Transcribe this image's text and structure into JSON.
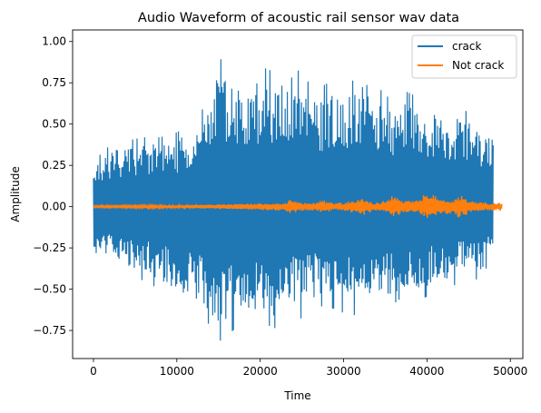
{
  "chart_data": {
    "type": "line",
    "title": "Audio Waveform of acoustic rail sensor wav data",
    "xlabel": "Time",
    "ylabel": "Amplitude",
    "xlim": [
      -2500,
      51500
    ],
    "ylim": [
      -0.92,
      1.07
    ],
    "xticks": [
      0,
      10000,
      20000,
      30000,
      40000,
      50000
    ],
    "xtick_labels": [
      "0",
      "10000",
      "20000",
      "30000",
      "40000",
      "50000"
    ],
    "yticks": [
      -0.75,
      -0.5,
      -0.25,
      0.0,
      0.25,
      0.5,
      0.75,
      1.0
    ],
    "ytick_labels": [
      "−0.75",
      "−0.50",
      "−0.25",
      "0.00",
      "0.25",
      "0.50",
      "0.75",
      "1.00"
    ],
    "grid": false,
    "legend_position": "top-right",
    "series": [
      {
        "name": "crack",
        "color": "#1f77b4",
        "x_range": [
          0,
          48000
        ],
        "envelope_x": [
          0,
          1000,
          2000,
          4000,
          6000,
          8000,
          10000,
          11000,
          12000,
          14000,
          15000,
          16000,
          18000,
          20000,
          22000,
          24000,
          25000,
          27000,
          29000,
          31000,
          33000,
          35000,
          37000,
          39000,
          41000,
          43000,
          45000,
          47000,
          48000
        ],
        "envelope_upper": [
          0.33,
          0.31,
          0.38,
          0.4,
          0.42,
          0.42,
          0.45,
          0.48,
          0.53,
          0.8,
          0.91,
          0.85,
          0.78,
          0.85,
          0.81,
          0.88,
          0.78,
          0.72,
          0.77,
          0.76,
          0.84,
          0.66,
          0.71,
          0.66,
          0.63,
          0.63,
          0.57,
          0.48,
          0.47
        ],
        "envelope_lower": [
          -0.32,
          -0.3,
          -0.36,
          -0.4,
          -0.45,
          -0.5,
          -0.55,
          -0.6,
          -0.62,
          -0.72,
          -0.82,
          -0.78,
          -0.7,
          -0.7,
          -0.74,
          -0.65,
          -0.68,
          -0.6,
          -0.62,
          -0.67,
          -0.58,
          -0.63,
          -0.55,
          -0.57,
          -0.52,
          -0.48,
          -0.45,
          -0.43,
          -0.35
        ]
      },
      {
        "name": "Not crack",
        "color": "#ff7f0e",
        "x_range": [
          0,
          49000
        ],
        "envelope_x": [
          0,
          5000,
          10000,
          15000,
          20000,
          23000,
          23700,
          25000,
          27000,
          27400,
          29000,
          31000,
          32000,
          33500,
          35000,
          36000,
          37000,
          39000,
          40000,
          41500,
          43000,
          44000,
          45000,
          47000,
          49000
        ],
        "envelope_upper": [
          0.005,
          0.007,
          0.01,
          0.015,
          0.02,
          0.025,
          0.045,
          0.025,
          0.03,
          0.04,
          0.02,
          0.035,
          0.06,
          0.025,
          0.035,
          0.07,
          0.04,
          0.04,
          0.09,
          0.05,
          0.04,
          0.07,
          0.04,
          0.025,
          0.025
        ],
        "envelope_lower": [
          -0.005,
          -0.007,
          -0.01,
          -0.015,
          -0.02,
          -0.025,
          -0.04,
          -0.025,
          -0.03,
          -0.04,
          -0.02,
          -0.035,
          -0.06,
          -0.025,
          -0.035,
          -0.07,
          -0.04,
          -0.04,
          -0.08,
          -0.05,
          -0.04,
          -0.07,
          -0.04,
          -0.025,
          -0.025
        ]
      }
    ]
  }
}
